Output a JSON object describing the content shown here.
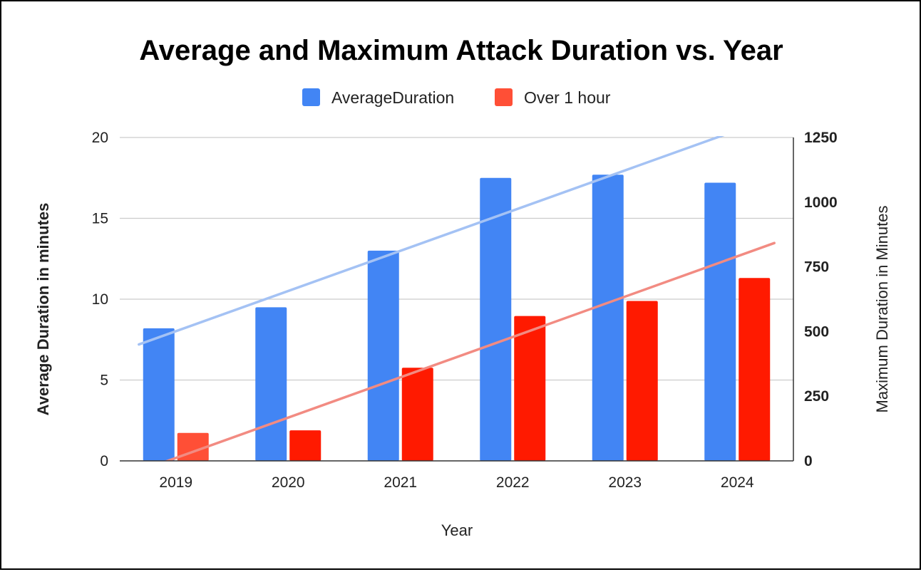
{
  "chart_data": {
    "type": "bar",
    "title": "Average and Maximum Attack Duration vs. Year",
    "xlabel": "Year",
    "ylabel_left": "Average Duration in minutes",
    "ylabel_right": "Maximum Duration in Minutes",
    "categories": [
      "2019",
      "2020",
      "2021",
      "2022",
      "2023",
      "2024"
    ],
    "series": [
      {
        "name": "AverageDuration",
        "axis": "left",
        "color": "#4285f4",
        "values": [
          8.2,
          9.5,
          13.0,
          17.5,
          17.7,
          17.2
        ]
      },
      {
        "name": "Over 1 hour",
        "axis": "right",
        "color": "#ff1a00",
        "highlight_color": "#ff4f36",
        "values": [
          108,
          118,
          360,
          560,
          618,
          707
        ]
      }
    ],
    "trendlines": [
      {
        "series": "AverageDuration",
        "color": "#a4c2f4",
        "x_start": -0.33,
        "y_start": 7.2,
        "x_end": 5.0,
        "y_end": 20.45
      },
      {
        "series": "Over 1 hour",
        "color": "#f28b82",
        "x_start": -0.33,
        "y_start": -40,
        "x_end": 5.33,
        "y_end": 842
      }
    ],
    "ylim_left": [
      0,
      20
    ],
    "yticks_left": [
      "0",
      "5",
      "10",
      "15",
      "20"
    ],
    "ylim_right": [
      0,
      1250
    ],
    "yticks_right": [
      "0",
      "250",
      "500",
      "750",
      "1000",
      "1250"
    ],
    "legend_position": "top-center",
    "grid": true
  }
}
